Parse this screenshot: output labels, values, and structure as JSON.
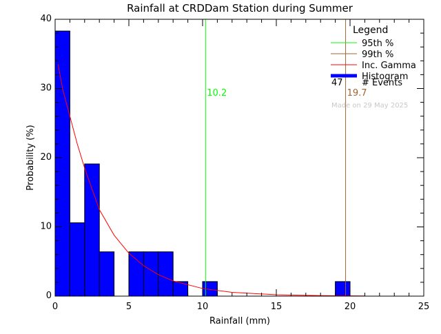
{
  "chart_data": {
    "type": "bar",
    "title": "Rainfall at CRDDam Station during Summer",
    "xlabel": "Rainfall (mm)",
    "ylabel": "Probability (%)",
    "xlim": [
      0,
      25
    ],
    "ylim": [
      0,
      40
    ],
    "xticks": [
      0,
      5,
      10,
      15,
      20,
      25
    ],
    "yticks": [
      0,
      10,
      20,
      30,
      40
    ],
    "grid": false,
    "histogram": {
      "bin_edges": [
        0,
        1,
        2,
        3,
        4,
        5,
        6,
        7,
        8,
        9,
        10,
        11,
        12,
        13,
        14,
        15,
        16,
        17,
        18,
        19,
        20
      ],
      "values": [
        38.3,
        10.6,
        19.1,
        6.4,
        0,
        6.4,
        6.4,
        6.4,
        2.1,
        0,
        2.1,
        0,
        0,
        0,
        0,
        0,
        0,
        0,
        0,
        2.1
      ],
      "color": "#0000ff"
    },
    "inc_gamma": {
      "x": [
        0.2,
        0.5,
        1,
        1.5,
        2,
        3,
        4,
        5,
        6,
        7,
        8,
        10,
        12,
        15,
        18,
        21
      ],
      "y": [
        33.5,
        30,
        26,
        22,
        18.5,
        12.5,
        8.8,
        6.2,
        4.4,
        3.1,
        2.2,
        1.1,
        0.55,
        0.2,
        0.07,
        0.02
      ],
      "color": "#ff0000"
    },
    "percentile_95": {
      "value": 10.2,
      "label": "10.2",
      "color": "#00ff00"
    },
    "percentile_99": {
      "value": 19.7,
      "label": "19.7",
      "color": "#a0642d"
    },
    "legend": {
      "title": "Legend",
      "placement": "top-right",
      "entries": [
        {
          "label": "95th %",
          "color": "#00ff00"
        },
        {
          "label": "99th %",
          "color": "#a0642d"
        },
        {
          "label": "Inc. Gamma",
          "color": "#ff0000"
        },
        {
          "label": "Histogram",
          "color": "#0000ff"
        }
      ],
      "events_count": "47",
      "events_label": "# Events"
    },
    "made_on": "Made on 29 May 2025"
  }
}
